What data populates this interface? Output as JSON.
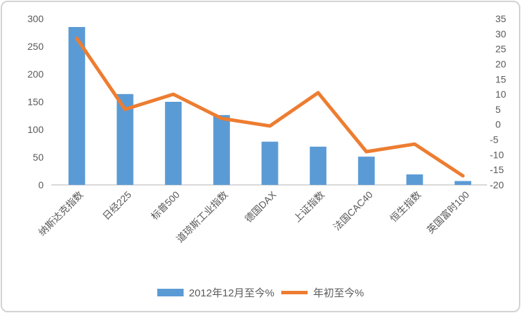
{
  "chart_data": {
    "type": "combo-bar-line",
    "title": "",
    "categories": [
      "纳斯达克指数",
      "日经225",
      "标普500",
      "道琼斯工业指数",
      "德国DAX",
      "上证指数",
      "法国CAC40",
      "恒生指数",
      "英国富时100"
    ],
    "series": [
      {
        "name": "2012年12月至今%",
        "type": "bar",
        "axis": "left",
        "color": "#5B9BD5",
        "values": [
          285,
          164,
          150,
          126,
          78,
          69,
          51,
          19,
          7
        ]
      },
      {
        "name": "年初至今%",
        "type": "line",
        "axis": "right",
        "color": "#ED7D31",
        "values": [
          28.5,
          5,
          10,
          2,
          -0.5,
          10.5,
          -9,
          -6.5,
          -17
        ]
      }
    ],
    "left_axis": {
      "min": 0,
      "max": 300,
      "step": 50,
      "ticks": [
        0,
        50,
        100,
        150,
        200,
        250,
        300
      ]
    },
    "right_axis": {
      "min": -20,
      "max": 35,
      "step": 5,
      "ticks": [
        -20,
        -15,
        -10,
        -5,
        0,
        5,
        10,
        15,
        20,
        25,
        30,
        35
      ]
    },
    "grid": false,
    "legend_position": "bottom"
  },
  "colors": {
    "bar": "#5B9BD5",
    "line": "#ED7D31",
    "tick_text": "#595959",
    "category_text": "#595959",
    "axis_line": "#D9D9D9",
    "frame_border": "#D3D3D3",
    "background": "#FFFFFF"
  }
}
